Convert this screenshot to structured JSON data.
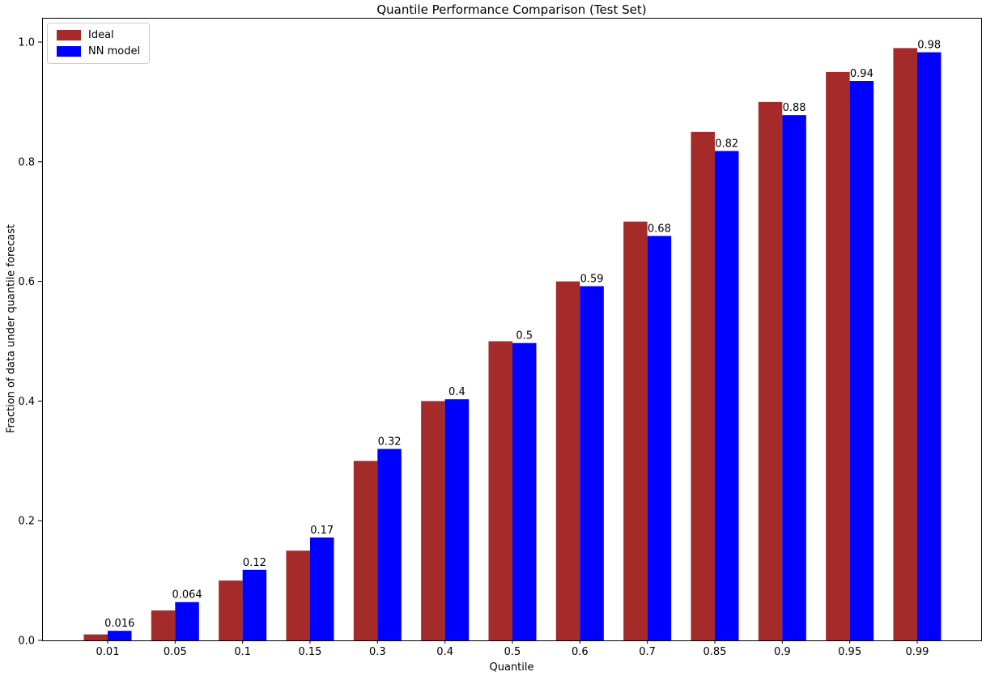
{
  "figure": {
    "background": "#ffffff",
    "axis_color": "#000000",
    "text_color": "#000000",
    "legend_border_color": "#cccccc"
  },
  "chart_data": {
    "type": "bar",
    "title": "Quantile Performance Comparison (Test Set)",
    "xlabel": "Quantile",
    "ylabel": "Fraction of data under quantile forecast",
    "categories": [
      "0.01",
      "0.05",
      "0.1",
      "0.15",
      "0.3",
      "0.4",
      "0.5",
      "0.6",
      "0.7",
      "0.85",
      "0.9",
      "0.95",
      "0.99"
    ],
    "series": [
      {
        "name": "Ideal",
        "color": "#A52A2A",
        "values": [
          0.01,
          0.05,
          0.1,
          0.15,
          0.3,
          0.4,
          0.5,
          0.6,
          0.7,
          0.85,
          0.9,
          0.95,
          0.99
        ]
      },
      {
        "name": "NN model",
        "color": "#0000FF",
        "values": [
          0.016,
          0.064,
          0.118,
          0.172,
          0.32,
          0.403,
          0.497,
          0.592,
          0.676,
          0.818,
          0.878,
          0.935,
          0.983
        ]
      }
    ],
    "bar_labels": [
      "0.016",
      "0.064",
      "0.12",
      "0.17",
      "0.32",
      "0.4",
      "0.5",
      "0.59",
      "0.68",
      "0.82",
      "0.88",
      "0.94",
      "0.98"
    ],
    "yticks": [
      "0.0",
      "0.2",
      "0.4",
      "0.6",
      "0.8",
      "1.0"
    ],
    "ylim": [
      0,
      1.04
    ],
    "grid": false,
    "legend_position": "upper left"
  }
}
